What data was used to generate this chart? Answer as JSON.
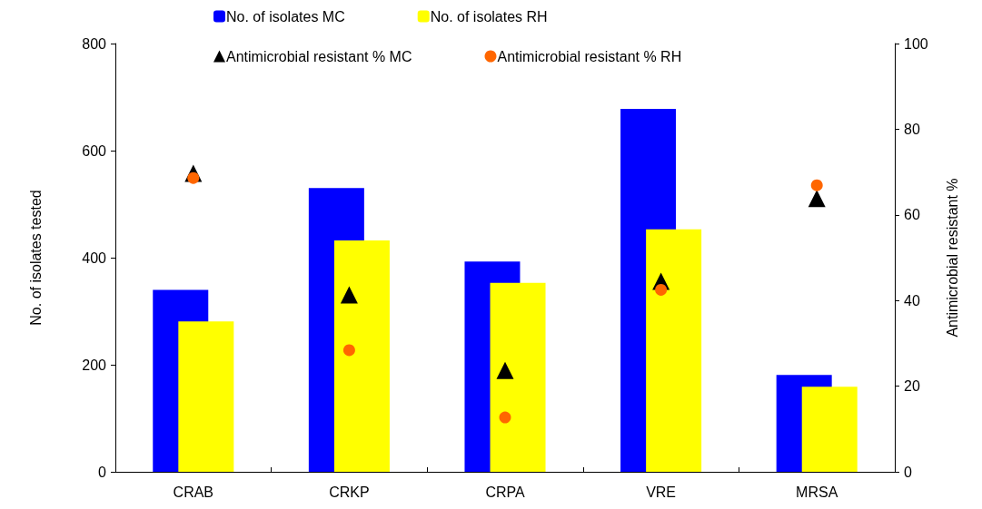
{
  "chart_data": {
    "type": "bar",
    "categories": [
      "CRAB",
      "CRKP",
      "CRPA",
      "VRE",
      "MRSA"
    ],
    "ylabel": "No. of isolates tested",
    "y2label": "Antimicrobial resistant %",
    "ylim": [
      0,
      800
    ],
    "yticks": [
      0,
      200,
      400,
      600,
      800
    ],
    "y2lim": [
      0,
      100
    ],
    "y2ticks": [
      0,
      20,
      40,
      60,
      80,
      100
    ],
    "grid": false,
    "legend": "top",
    "series": [
      {
        "name": "No. of isolates MC",
        "color": "#0000ff",
        "values": [
          340,
          530,
          393,
          678,
          181
        ]
      },
      {
        "name": "No. of isolates RH",
        "color": "#ffff00",
        "values": [
          281,
          432,
          353,
          453,
          159
        ]
      },
      {
        "name": "Antimicrobial resistant % MC",
        "type": "scatter",
        "marker": "triangle",
        "axis": "y2",
        "color": "#000000",
        "values": [
          69.7,
          41.3,
          23.7,
          44.5,
          63.8
        ]
      },
      {
        "name": "Antimicrobial resistant % RH",
        "type": "scatter",
        "marker": "circle",
        "axis": "y2",
        "color": "#ff6600",
        "values": [
          68.6,
          28.4,
          12.7,
          42.5,
          66.9
        ]
      }
    ]
  }
}
